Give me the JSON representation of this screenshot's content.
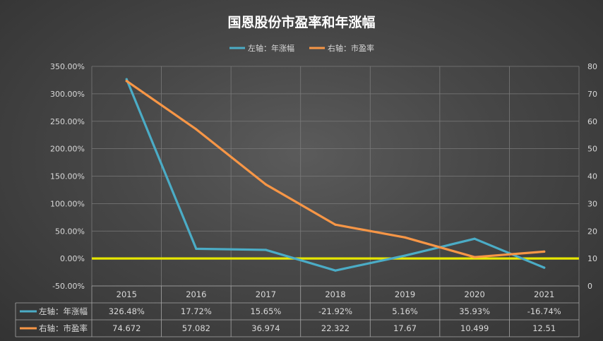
{
  "title": "国恩股份市盈率和年涨幅",
  "colors": {
    "growth": "#4bacc6",
    "pe": "#f79646",
    "zero_line": "#e6e600",
    "grid": "#7a7a7a",
    "table_border": "#a6a6a6"
  },
  "chart_data": {
    "type": "line",
    "categories": [
      "2015",
      "2016",
      "2017",
      "2018",
      "2019",
      "2020",
      "2021"
    ],
    "series": [
      {
        "name": "左轴：年涨幅",
        "axis": "left",
        "values": [
          326.48,
          17.72,
          15.65,
          -21.92,
          5.16,
          35.93,
          -16.74
        ],
        "labels": [
          "326.48%",
          "17.72%",
          "15.65%",
          "-21.92%",
          "5.16%",
          "35.93%",
          "-16.74%"
        ]
      },
      {
        "name": "右轴：市盈率",
        "axis": "right",
        "values": [
          74.672,
          57.082,
          36.974,
          22.322,
          17.67,
          10.499,
          12.51
        ],
        "labels": [
          "74.672",
          "57.082",
          "36.974",
          "22.322",
          "17.67",
          "10.499",
          "12.51"
        ]
      }
    ],
    "y_left": {
      "range": [
        -50,
        350
      ],
      "ticks": [
        "350.00%",
        "300.00%",
        "250.00%",
        "200.00%",
        "150.00%",
        "100.00%",
        "50.00%",
        "0.00%",
        "-50.00%"
      ]
    },
    "y_right": {
      "range": [
        0,
        80
      ],
      "ticks": [
        "80",
        "70",
        "60",
        "50",
        "40",
        "30",
        "20",
        "10",
        "0"
      ]
    },
    "grid": true,
    "legend_position": "top",
    "data_table": true,
    "highlight_line": {
      "axis": "left",
      "value": 0
    }
  }
}
